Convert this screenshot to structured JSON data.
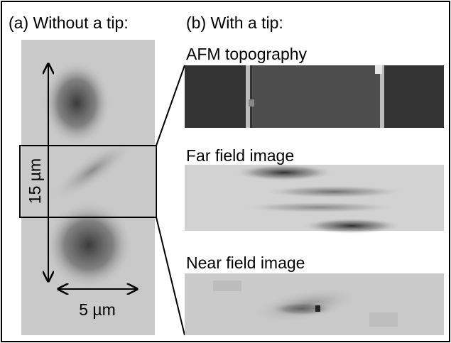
{
  "panel_a": {
    "title": "(a) Without a tip:",
    "height_label": "15 µm",
    "width_label": "5 µm"
  },
  "panel_b": {
    "title": "(b) With a tip:",
    "images": [
      {
        "label": "AFM topography"
      },
      {
        "label": "Far field image"
      },
      {
        "label": "Near field image"
      }
    ]
  }
}
